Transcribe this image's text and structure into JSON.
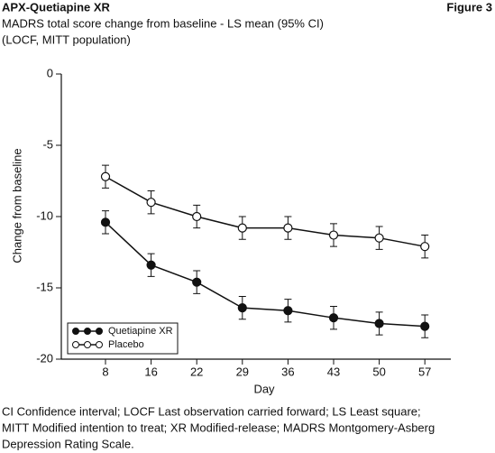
{
  "chart_data": {
    "type": "line",
    "title": "APX-Quetiapine XR",
    "figure_label": "Figure 3",
    "subtitle": [
      "MADRS total score change from baseline - LS mean (95% CI)",
      "(LOCF, MITT population)"
    ],
    "x_label": "Day",
    "y_label": "Change from baseline",
    "categories": [
      "8",
      "16",
      "22",
      "29",
      "36",
      "43",
      "50",
      "57"
    ],
    "series": [
      {
        "name": "Quetiapine XR",
        "color": "#111111",
        "marker_fill": "#111111",
        "values": [
          -10.4,
          -13.4,
          -14.6,
          -16.4,
          -16.6,
          -17.1,
          -17.5,
          -17.7
        ],
        "errors": [
          0.8,
          0.8,
          0.8,
          0.8,
          0.8,
          0.8,
          0.8,
          0.8
        ]
      },
      {
        "name": "Placebo",
        "color": "#111111",
        "marker_fill": "#ffffff",
        "values": [
          -7.2,
          -9.0,
          -10.0,
          -10.8,
          -10.8,
          -11.3,
          -11.5,
          -12.1
        ],
        "errors": [
          0.8,
          0.8,
          0.8,
          0.8,
          0.8,
          0.8,
          0.8,
          0.8
        ]
      }
    ],
    "ylim": [
      -20,
      0
    ],
    "yticks": [
      0,
      -5,
      -10,
      -15,
      -20
    ],
    "legend": "lower left",
    "footnote": [
      "CI Confidence interval; LOCF Last observation carried forward; LS Least square;",
      "MITT Modified intention to treat; XR Modified-release; MADRS Montgomery-Asberg",
      "Depression Rating Scale."
    ]
  }
}
